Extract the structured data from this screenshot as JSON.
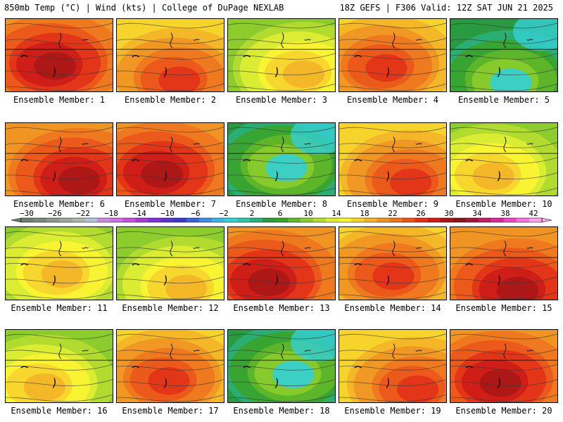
{
  "header": {
    "left": "850mb Temp (°C) | Wind (kts) | College of DuPage NEXLAB",
    "right": "18Z GEFS | F306 Valid: 12Z SAT JUN 21 2025"
  },
  "panels": [
    {
      "label": "Ensemble Member: 1",
      "style": "hot"
    },
    {
      "label": "Ensemble Member: 2",
      "style": "warm"
    },
    {
      "label": "Ensemble Member: 3",
      "style": "mild"
    },
    {
      "label": "Ensemble Member: 4",
      "style": "warm"
    },
    {
      "label": "Ensemble Member: 5",
      "style": "cool"
    },
    {
      "label": "Ensemble Member: 6",
      "style": "hot"
    },
    {
      "label": "Ensemble Member: 7",
      "style": "hot"
    },
    {
      "label": "Ensemble Member: 8",
      "style": "cool"
    },
    {
      "label": "Ensemble Member: 9",
      "style": "warm"
    },
    {
      "label": "Ensemble Member: 10",
      "style": "mild"
    },
    {
      "label": "Ensemble Member: 11",
      "style": "mild"
    },
    {
      "label": "Ensemble Member: 12",
      "style": "mild"
    },
    {
      "label": "Ensemble Member: 13",
      "style": "hot"
    },
    {
      "label": "Ensemble Member: 14",
      "style": "warm"
    },
    {
      "label": "Ensemble Member: 15",
      "style": "hot"
    },
    {
      "label": "Ensemble Member: 16",
      "style": "mild"
    },
    {
      "label": "Ensemble Member: 17",
      "style": "warm"
    },
    {
      "label": "Ensemble Member: 18",
      "style": "cool"
    },
    {
      "label": "Ensemble Member: 19",
      "style": "warm"
    },
    {
      "label": "Ensemble Member: 20",
      "style": "hot"
    }
  ],
  "colorbar": {
    "ticks": [
      "-30",
      "-26",
      "-22",
      "-18",
      "-14",
      "-10",
      "-6",
      "-2",
      "2",
      "6",
      "10",
      "14",
      "18",
      "22",
      "26",
      "30",
      "34",
      "38",
      "42"
    ],
    "colors": [
      "#6e7f70",
      "#7c8a7e",
      "#8d978d",
      "#9ea79f",
      "#aeb5ae",
      "#b7c2d6",
      "#c98de0",
      "#d070e6",
      "#c84fe0",
      "#a63bd6",
      "#7d33d8",
      "#5a33d1",
      "#3a3bc9",
      "#3b62d4",
      "#3d8ee0",
      "#3fb3e6",
      "#34d0d6",
      "#2ec7a8",
      "#2ab07a",
      "#2a9a40",
      "#3aa32a",
      "#62b82a",
      "#8ccc2c",
      "#b6dd30",
      "#dfee34",
      "#fbf432",
      "#f6d42c",
      "#f3b427",
      "#f09523",
      "#ee761f",
      "#ea551b",
      "#e23219",
      "#cc1c18",
      "#a81616",
      "#8a1414",
      "#a01838",
      "#c41d63",
      "#de2a95",
      "#ef47c3",
      "#f672dd",
      "#f8a3ea"
    ]
  },
  "colors": {
    "hot_core": "#8a1414",
    "warm": "#f09523",
    "mild": "#dfee34",
    "cool": "#2a9a40"
  }
}
